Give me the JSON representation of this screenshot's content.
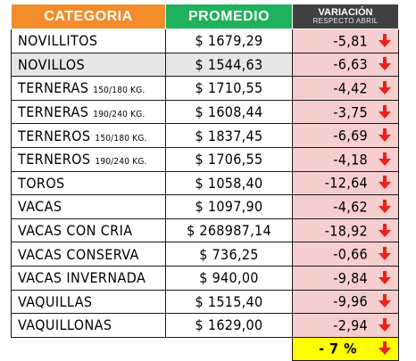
{
  "header": {
    "categoria": "CATEGORIA",
    "promedio": "PROMEDIO",
    "variacion": "VARIACIÓN",
    "variacion_sub": "RESPECTO ABRIL"
  },
  "colors": {
    "categoria_header": "#f28c2a",
    "promedio_header": "#1fb15c",
    "variacion_header": "#404040",
    "variacion_cell": "#f6cece",
    "arrow": "#e8221c",
    "total_cell": "#ffff00"
  },
  "icons": {
    "down": "arrow-down-icon"
  },
  "rows": [
    {
      "name": "NOVILLITOS",
      "sub": "",
      "avg": "$ 1679,29",
      "var": "-5,81"
    },
    {
      "name": "NOVILLOS",
      "sub": "",
      "avg": "$ 1544,63",
      "var": "-6,63"
    },
    {
      "name": "TERNERAS",
      "sub": "150/180 KG.",
      "avg": "$ 1710,55",
      "var": "-4,42"
    },
    {
      "name": "TERNERAS",
      "sub": "190/240 KG.",
      "avg": "$ 1608,44",
      "var": "-3,75"
    },
    {
      "name": "TERNEROS",
      "sub": "150/180 KG.",
      "avg": "$ 1837,45",
      "var": "-6,69"
    },
    {
      "name": "TERNEROS",
      "sub": "190/240 KG.",
      "avg": "$ 1706,55",
      "var": "-4,18"
    },
    {
      "name": "TOROS",
      "sub": "",
      "avg": "$ 1058,40",
      "var": "-12,64"
    },
    {
      "name": "VACAS",
      "sub": "",
      "avg": "$ 1097,90",
      "var": "-4,62"
    },
    {
      "name": "VACAS CON CRIA",
      "sub": "",
      "avg": "$ 268987,14",
      "var": "-18,92"
    },
    {
      "name": "VACAS CONSERVA",
      "sub": "",
      "avg": "$ 736,25",
      "var": "-0,66"
    },
    {
      "name": "VACAS INVERNADA",
      "sub": "",
      "avg": "$ 940,00",
      "var": "-9,84"
    },
    {
      "name": "VAQUILLAS",
      "sub": "",
      "avg": "$ 1515,40",
      "var": "-9,96"
    },
    {
      "name": "VAQUILLONAS",
      "sub": "",
      "avg": "$ 1629,00",
      "var": "-2,94"
    }
  ],
  "total": "- 7 %"
}
